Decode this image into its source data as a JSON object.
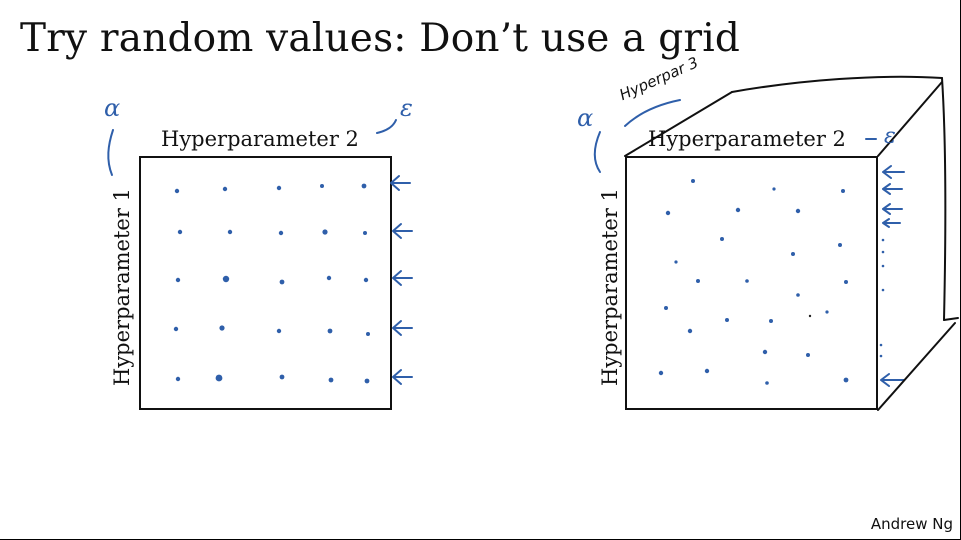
{
  "title": "Try random values: Don’t use a grid",
  "credit": "Andrew Ng",
  "left_panel": {
    "x_label": "Hyperparameter 2",
    "y_label": "Hyperparameter 1",
    "alpha_label": "α",
    "epsilon_label": "ε"
  },
  "right_panel": {
    "x_label": "Hyperparameter 2",
    "y_label": "Hyperparameter 1",
    "alpha_label": "α",
    "epsilon_label": "ε",
    "z_label": "Hyperpar 3"
  },
  "colors": {
    "ink": "#2f5faa",
    "frame": "#111111"
  }
}
